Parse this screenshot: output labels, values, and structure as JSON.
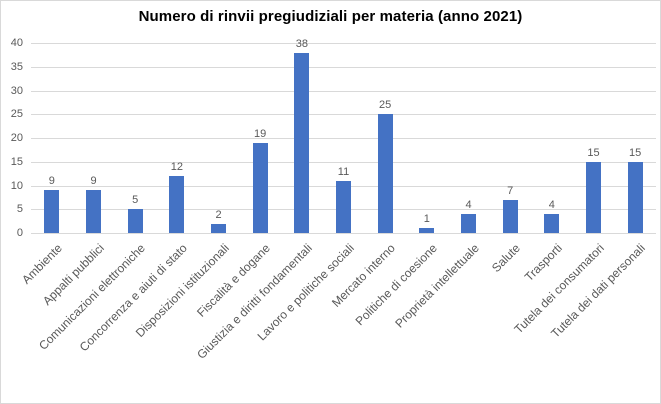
{
  "chart_data": {
    "type": "bar",
    "title": "Numero di rinvii pregiudiziali per materia (anno 2021)",
    "categories": [
      "Ambiente",
      "Appalti pubblici",
      "Comunicazioni elettroniche",
      "Concorrenza e aiuti di stato",
      "Disposizioni istituzionali",
      "Fiscalità e dogane",
      "Giustizia e diritti fondamentali",
      "Lavoro e politiche sociali",
      "Mercato interno",
      "Politiche di coesione",
      "Proprietà intellettuale",
      "Salute",
      "Trasporti",
      "Tutela dei consumatori",
      "Tutela dei dati personali"
    ],
    "values": [
      9,
      9,
      5,
      12,
      2,
      19,
      38,
      11,
      25,
      1,
      4,
      7,
      4,
      15,
      15
    ],
    "data_labels": [
      9,
      9,
      5,
      12,
      2,
      19,
      38,
      11,
      25,
      1,
      4,
      7,
      4,
      15,
      15
    ],
    "xlabel": "",
    "ylabel": "",
    "ylim": [
      0,
      40
    ],
    "yticks": [
      0,
      5,
      10,
      15,
      20,
      25,
      30,
      35,
      40
    ],
    "grid": true,
    "legend": false,
    "colors": {
      "bar_fill": "#4472C4",
      "gridline": "#D9D9D9",
      "axis_text": "#595959",
      "title_text": "#000000",
      "frame_border": "#D9D9D9",
      "background": "#FFFFFF"
    }
  }
}
